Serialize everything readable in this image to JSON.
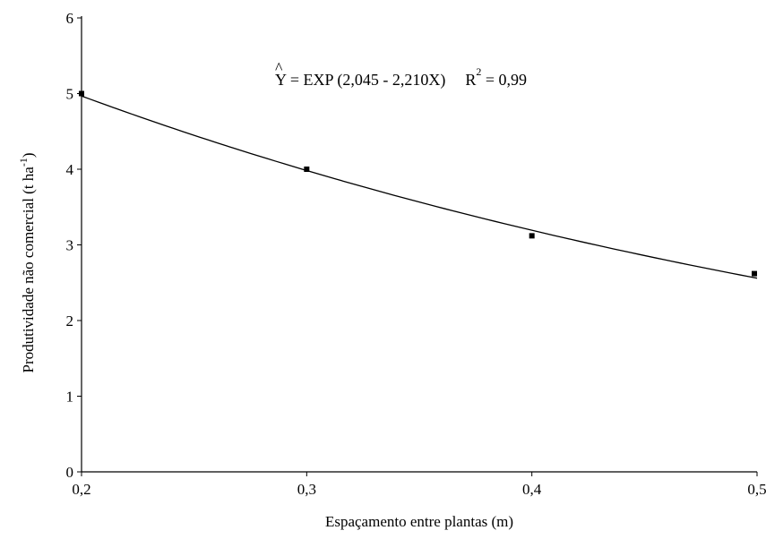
{
  "chart_data": {
    "type": "scatter",
    "x_ticks": [
      "0,2",
      "0,3",
      "0,4",
      "0,5"
    ],
    "y_ticks": [
      "0",
      "1",
      "2",
      "3",
      "4",
      "5",
      "6"
    ],
    "xlim": [
      0.2,
      0.5
    ],
    "ylim": [
      0,
      6
    ],
    "xlabel": "Espaçamento entre plantas (m)",
    "ylabel": {
      "prefix": "Produtividade não comercial  (t ha",
      "sup": "-1",
      "suffix": ")"
    },
    "series": [
      {
        "x": [
          0.2,
          0.3,
          0.4,
          0.5
        ],
        "y": [
          5.0,
          4.0,
          3.12,
          2.62
        ]
      }
    ],
    "fit": {
      "model": "exp",
      "a": 2.045,
      "b": -2.21,
      "equation": {
        "hat": "^",
        "y": "Y",
        "rest": " = EXP (2,045 - 2,210X)",
        "r_label": "R",
        "r_sup": "2",
        "r_value": " = 0,99"
      }
    },
    "grid": false
  }
}
